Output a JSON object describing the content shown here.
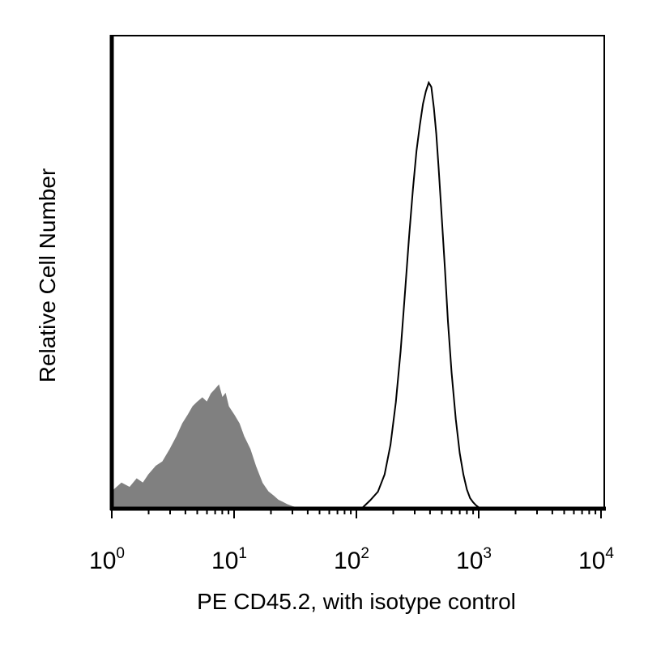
{
  "chart_data": {
    "type": "area",
    "title": "",
    "xlabel": "PE CD45.2, with isotype control",
    "ylabel": "Relative Cell Number",
    "xscale": "log",
    "xlim": [
      1,
      10000
    ],
    "ylim": [
      0,
      100
    ],
    "grid": false,
    "x_ticks": [
      {
        "base": "10",
        "exp": "0",
        "value": 1
      },
      {
        "base": "10",
        "exp": "1",
        "value": 10
      },
      {
        "base": "10",
        "exp": "2",
        "value": 100
      },
      {
        "base": "10",
        "exp": "3",
        "value": 1000
      },
      {
        "base": "10",
        "exp": "4",
        "value": 10000
      }
    ],
    "series": [
      {
        "style": "filled",
        "color": "#808080",
        "x": [
          1,
          1.2,
          1.4,
          1.6,
          1.8,
          2.0,
          2.3,
          2.6,
          3.0,
          3.4,
          3.8,
          4.2,
          4.6,
          5.0,
          5.5,
          6.0,
          6.5,
          7.0,
          7.5,
          8.0,
          8.5,
          9.0,
          10,
          11,
          12,
          13.5,
          15,
          17,
          19,
          21,
          23,
          25,
          27,
          30,
          33,
          36
        ],
        "y": [
          4,
          6,
          5,
          7,
          6,
          8,
          10,
          11,
          14,
          17,
          20,
          22,
          24,
          25,
          26,
          25,
          27,
          28,
          29,
          26,
          27,
          24,
          22,
          20,
          17,
          14,
          10,
          6,
          4,
          3,
          2,
          1.5,
          1,
          0.5,
          0.2,
          0
        ]
      },
      {
        "style": "line",
        "color": "#000000",
        "x": [
          110,
          130,
          150,
          170,
          190,
          210,
          230,
          250,
          270,
          290,
          310,
          330,
          350,
          370,
          390,
          410,
          430,
          450,
          470,
          500,
          530,
          560,
          600,
          650,
          700,
          750,
          800,
          850,
          900,
          950,
          1000,
          1030
        ],
        "y": [
          0,
          2,
          4,
          8,
          15,
          25,
          37,
          51,
          64,
          75,
          84,
          90,
          95,
          98,
          100,
          99,
          94,
          88,
          80,
          68,
          56,
          44,
          32,
          21,
          13,
          8,
          4.5,
          2.5,
          1.5,
          0.8,
          0.3,
          0
        ]
      }
    ]
  }
}
